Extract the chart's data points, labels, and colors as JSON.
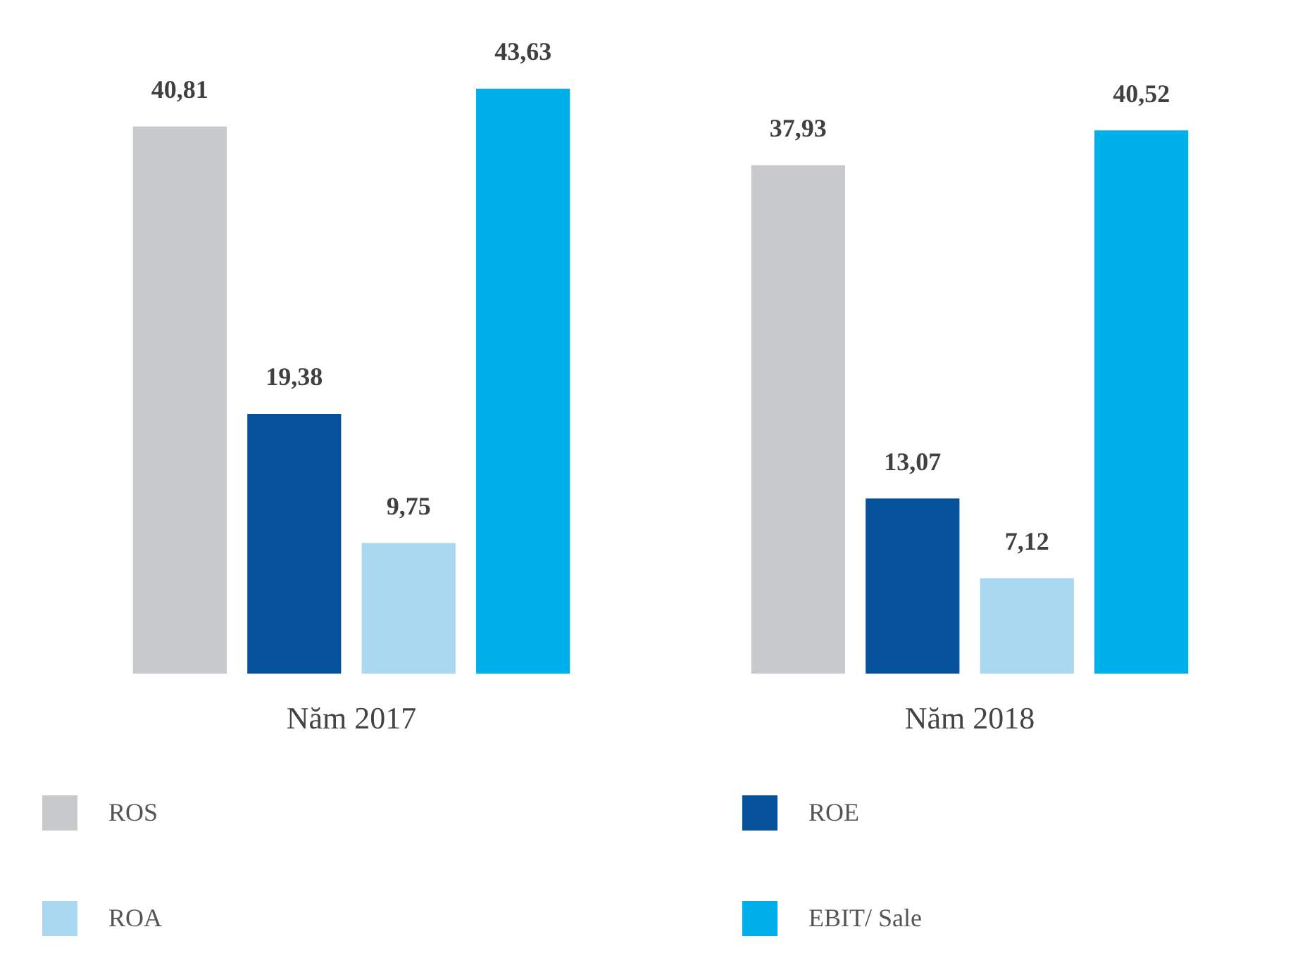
{
  "chart_data": {
    "type": "bar",
    "categories": [
      "Năm 2017",
      "Năm 2018"
    ],
    "series": [
      {
        "name": "ROS",
        "color": "#c8c9cb",
        "values": [
          40.81,
          37.93
        ],
        "value_labels": [
          "40,81",
          "37,93"
        ]
      },
      {
        "name": "ROE",
        "color": "#05519b",
        "values": [
          19.38,
          13.07
        ],
        "value_labels": [
          "19,38",
          "13,07"
        ]
      },
      {
        "name": "ROA",
        "color": "#aad8f0",
        "values": [
          9.75,
          7.12
        ],
        "value_labels": [
          "9,75",
          "7,12"
        ]
      },
      {
        "name": "EBIT/ Sale",
        "color": "#00b0ea",
        "values": [
          43.63,
          40.52
        ],
        "value_labels": [
          "43,63",
          "40,52"
        ]
      }
    ],
    "grid": false,
    "legend": "bottom",
    "tick_labels": "x"
  }
}
